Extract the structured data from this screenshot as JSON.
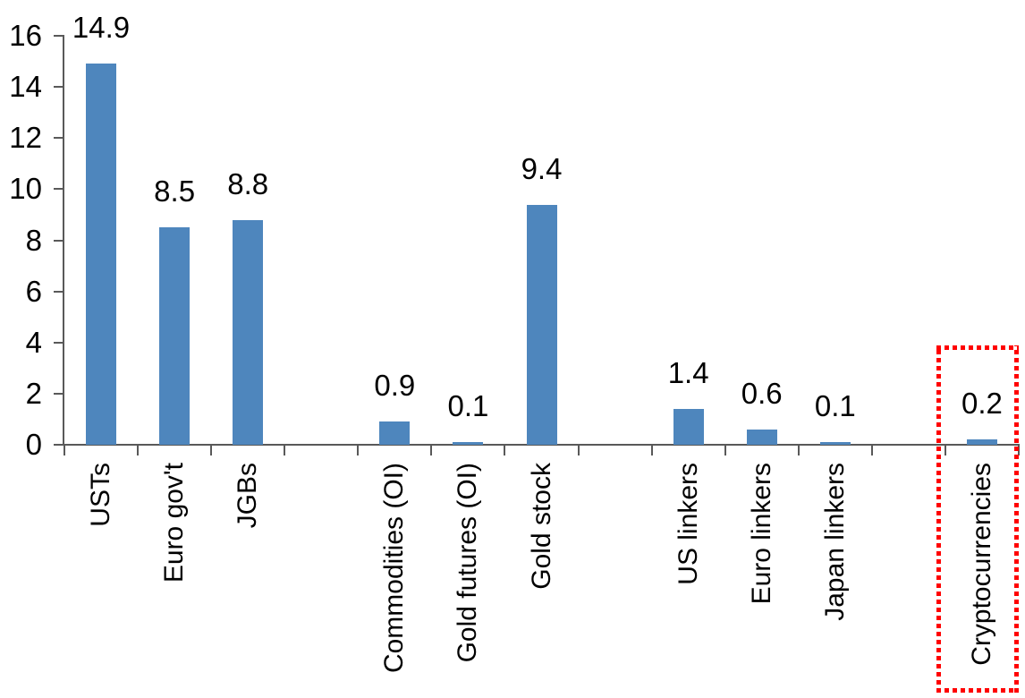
{
  "chart_data": {
    "type": "bar",
    "title": "",
    "xlabel": "",
    "ylabel": "",
    "categories": [
      "USTs",
      "Euro gov't",
      "JGBs",
      "Commodities (OI)",
      "Gold futures (OI)",
      "Gold stock",
      "US linkers",
      "Euro linkers",
      "Japan linkers",
      "Cryptocurrencies"
    ],
    "values": [
      14.9,
      8.5,
      8.8,
      0.9,
      0.1,
      9.4,
      1.4,
      0.6,
      0.1,
      0.2
    ],
    "data_labels": [
      "14.9",
      "8.5",
      "8.8",
      "0.9",
      "0.1",
      "9.4",
      "1.4",
      "0.6",
      "0.1",
      "0.2"
    ],
    "slots": [
      0,
      1,
      2,
      4,
      5,
      6,
      8,
      9,
      10,
      12
    ],
    "total_slots": 13,
    "group_gaps_after": [
      "JGBs",
      "Gold stock",
      "Japan linkers"
    ],
    "yticks": [
      0,
      2,
      4,
      6,
      8,
      10,
      12,
      14,
      16
    ],
    "ylim": [
      0,
      16
    ],
    "grid": false,
    "legend": "none",
    "bar_color": "#4E86BD",
    "axis_color": "#595959",
    "label_color": "#000000",
    "highlight": {
      "category": "Cryptocurrencies",
      "shape": "dotted-rectangle",
      "color": "#FF0000"
    }
  }
}
